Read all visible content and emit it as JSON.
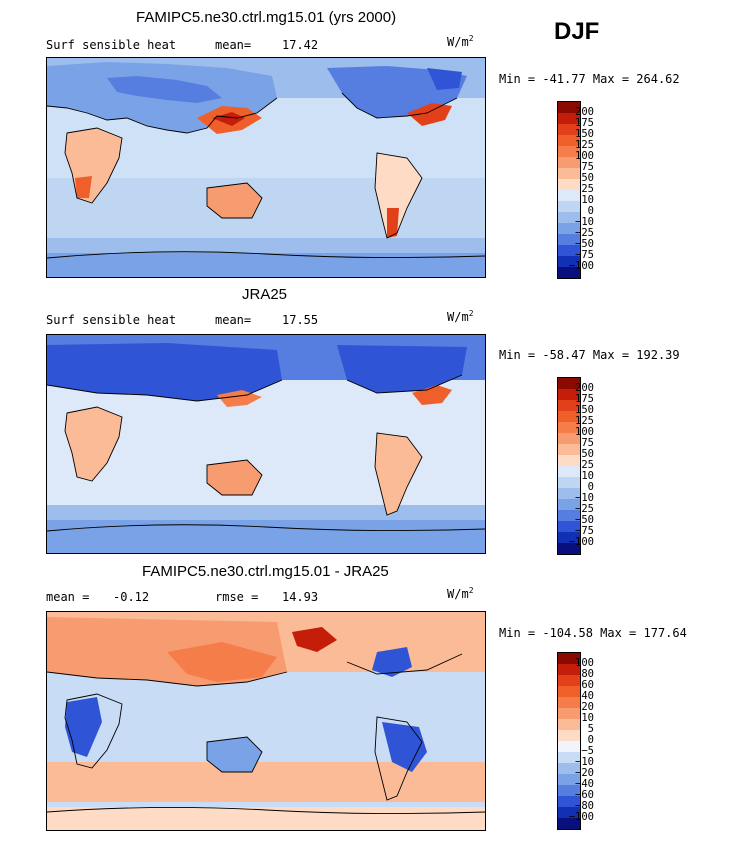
{
  "season": "DJF",
  "units_base": "W/m",
  "units_sup": "2",
  "panels": [
    {
      "title": "FAMIPC5.ne30.ctrl.mg15.01 (yrs 2000)",
      "variable": "Surf sensible heat",
      "stat1_label": "mean=",
      "stat1_value": "17.42",
      "stat2_label": "",
      "stat2_value": "",
      "minmax": "Min = -41.77 Max = 264.62",
      "levels": [
        "200",
        "175",
        "150",
        "125",
        "100",
        "75",
        "50",
        "25",
        "10",
        "0",
        "−10",
        "−25",
        "−50",
        "−75",
        "−100"
      ],
      "colors": [
        "#8b0a00",
        "#c41e0a",
        "#e2401a",
        "#ee5f2a",
        "#f47d4a",
        "#f79c70",
        "#fbbb97",
        "#fddbc4",
        "#dde9f8",
        "#bfd6f3",
        "#9dbdec",
        "#7aa2e6",
        "#557ee0",
        "#2f55d6",
        "#1230b4",
        "#0a0f7e"
      ]
    },
    {
      "title": "JRA25",
      "variable": "Surf sensible heat",
      "stat1_label": "mean=",
      "stat1_value": "17.55",
      "stat2_label": "",
      "stat2_value": "",
      "minmax": "Min = -58.47 Max = 192.39",
      "levels": [
        "200",
        "175",
        "150",
        "125",
        "100",
        "75",
        "50",
        "25",
        "10",
        "0",
        "−10",
        "−25",
        "−50",
        "−75",
        "−100"
      ],
      "colors": [
        "#8b0a00",
        "#c41e0a",
        "#e2401a",
        "#ee5f2a",
        "#f47d4a",
        "#f79c70",
        "#fbbb97",
        "#fddbc4",
        "#dde9f8",
        "#bfd6f3",
        "#9dbdec",
        "#7aa2e6",
        "#557ee0",
        "#2f55d6",
        "#1230b4",
        "#0a0f7e"
      ]
    },
    {
      "title": "FAMIPC5.ne30.ctrl.mg15.01 - JRA25",
      "variable": "",
      "stat1_label": "mean =",
      "stat1_value": "-0.12",
      "stat2_label": "rmse =",
      "stat2_value": "14.93",
      "minmax": "Min = -104.58 Max = 177.64",
      "levels": [
        "100",
        "80",
        "60",
        "40",
        "20",
        "10",
        "5",
        "0",
        "−5",
        "−10",
        "−20",
        "−40",
        "−60",
        "−80",
        "−100"
      ],
      "colors": [
        "#8b0a00",
        "#c41e0a",
        "#e2401a",
        "#ee5f2a",
        "#f47d4a",
        "#f79c70",
        "#fbbb97",
        "#fddbc4",
        "#f2f4fb",
        "#c9dcf5",
        "#9dbdec",
        "#7aa2e6",
        "#557ee0",
        "#2f55d6",
        "#1230b4",
        "#0a0f7e"
      ]
    }
  ]
}
